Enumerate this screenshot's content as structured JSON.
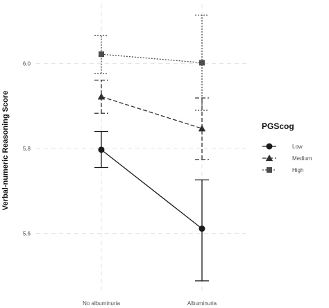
{
  "chart_data": {
    "type": "line",
    "title": "",
    "xlabel": "",
    "ylabel": "Verbal-numeric Reasoning Score",
    "categories": [
      "No albuminuria",
      "Albuminuria"
    ],
    "ylim": [
      5.46,
      6.14
    ],
    "yticks": [
      5.6,
      5.8,
      6.0
    ],
    "ytick_labels": [
      "5.6",
      "5.8",
      "6.0"
    ],
    "grid": true,
    "legend": {
      "title": "PGScog",
      "position": "right"
    },
    "series": [
      {
        "name": "Low",
        "marker": "circle",
        "line": "solid",
        "color": "#1a1a1a",
        "values": [
          5.797,
          5.611
        ],
        "lower": [
          5.755,
          5.488
        ],
        "upper": [
          5.84,
          5.726
        ]
      },
      {
        "name": "Medium",
        "marker": "triangle",
        "line": "dashed",
        "color": "#2e2e2e",
        "values": [
          5.922,
          5.847
        ],
        "lower": [
          5.883,
          5.774
        ],
        "upper": [
          5.961,
          5.919
        ]
      },
      {
        "name": "High",
        "marker": "square",
        "line": "dotted",
        "color": "#4d4d4d",
        "values": [
          6.022,
          6.002
        ],
        "lower": [
          5.977,
          5.89
        ],
        "upper": [
          6.066,
          6.114
        ]
      }
    ]
  }
}
